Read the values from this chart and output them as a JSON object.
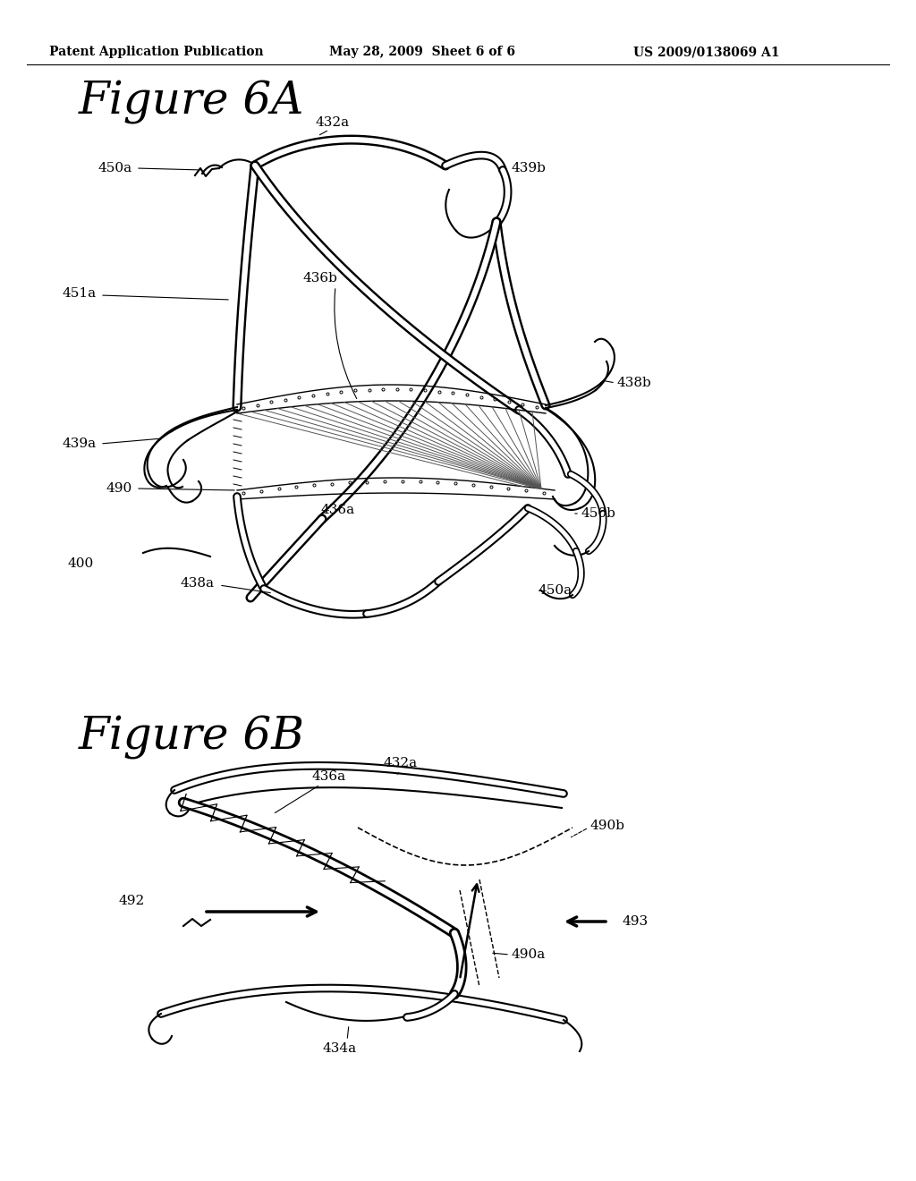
{
  "bg_color": "#ffffff",
  "header_text": "Patent Application Publication",
  "header_date": "May 28, 2009  Sheet 6 of 6",
  "header_patent": "US 2009/0138069 A1",
  "fig6a_title": "Figure 6A",
  "fig6b_title": "Figure 6B",
  "lw_double_outer": 8.0,
  "lw_double_inner": 4.5,
  "lw_single": 1.5,
  "lw_thin": 1.0
}
